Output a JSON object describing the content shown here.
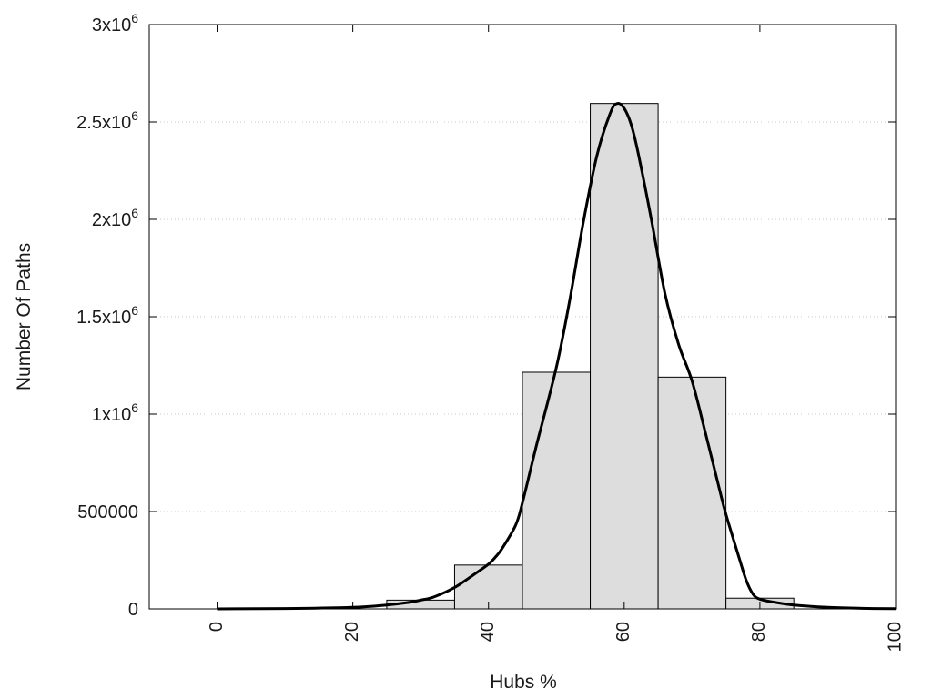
{
  "chart_data": {
    "type": "bar",
    "xlabel": "Hubs %",
    "ylabel": "Number Of Paths",
    "xlim": [
      -10,
      100
    ],
    "ylim": [
      0,
      3000000
    ],
    "grid": true,
    "bin_width": 10,
    "x_ticks": [
      {
        "value": 0,
        "label": "0"
      },
      {
        "value": 20,
        "label": "20"
      },
      {
        "value": 40,
        "label": "40"
      },
      {
        "value": 60,
        "label": "60"
      },
      {
        "value": 80,
        "label": "80"
      },
      {
        "value": 100,
        "label": "100"
      }
    ],
    "y_ticks": [
      {
        "value": 0,
        "label": "0",
        "sup": ""
      },
      {
        "value": 500000,
        "label": "500000",
        "sup": ""
      },
      {
        "value": 1000000,
        "label": "1x10",
        "sup": "6"
      },
      {
        "value": 1500000,
        "label": "1.5x10",
        "sup": "6"
      },
      {
        "value": 2000000,
        "label": "2x10",
        "sup": "6"
      },
      {
        "value": 2500000,
        "label": "2.5x10",
        "sup": "6"
      },
      {
        "value": 3000000,
        "label": "3x10",
        "sup": "6"
      }
    ],
    "bars": [
      {
        "x": 30,
        "value": 45000
      },
      {
        "x": 40,
        "value": 225000
      },
      {
        "x": 50,
        "value": 1215000
      },
      {
        "x": 60,
        "value": 2595000
      },
      {
        "x": 70,
        "value": 1190000
      },
      {
        "x": 80,
        "value": 55000
      }
    ],
    "curve": {
      "x": [
        0,
        10,
        20,
        25,
        28,
        30,
        32,
        35,
        38,
        40,
        41,
        42,
        44,
        45,
        47,
        50,
        52,
        54,
        56,
        58,
        59,
        60,
        61,
        62,
        64,
        66,
        68,
        70,
        72,
        74,
        75,
        77,
        78,
        79,
        80,
        82,
        85,
        90,
        95,
        100
      ],
      "y": [
        0,
        2000,
        8000,
        20000,
        32000,
        45000,
        62000,
        110000,
        180000,
        230000,
        265000,
        310000,
        430000,
        545000,
        830000,
        1240000,
        1590000,
        1990000,
        2330000,
        2550000,
        2595000,
        2570000,
        2490000,
        2350000,
        2000000,
        1620000,
        1360000,
        1170000,
        900000,
        620000,
        485000,
        255000,
        145000,
        75000,
        50000,
        35000,
        20000,
        8000,
        3000,
        1000
      ]
    },
    "colors": {
      "bar_fill": "#dddddd",
      "bar_stroke": "#000000",
      "curve": "#000000",
      "grid": "#c8c8c8"
    }
  }
}
